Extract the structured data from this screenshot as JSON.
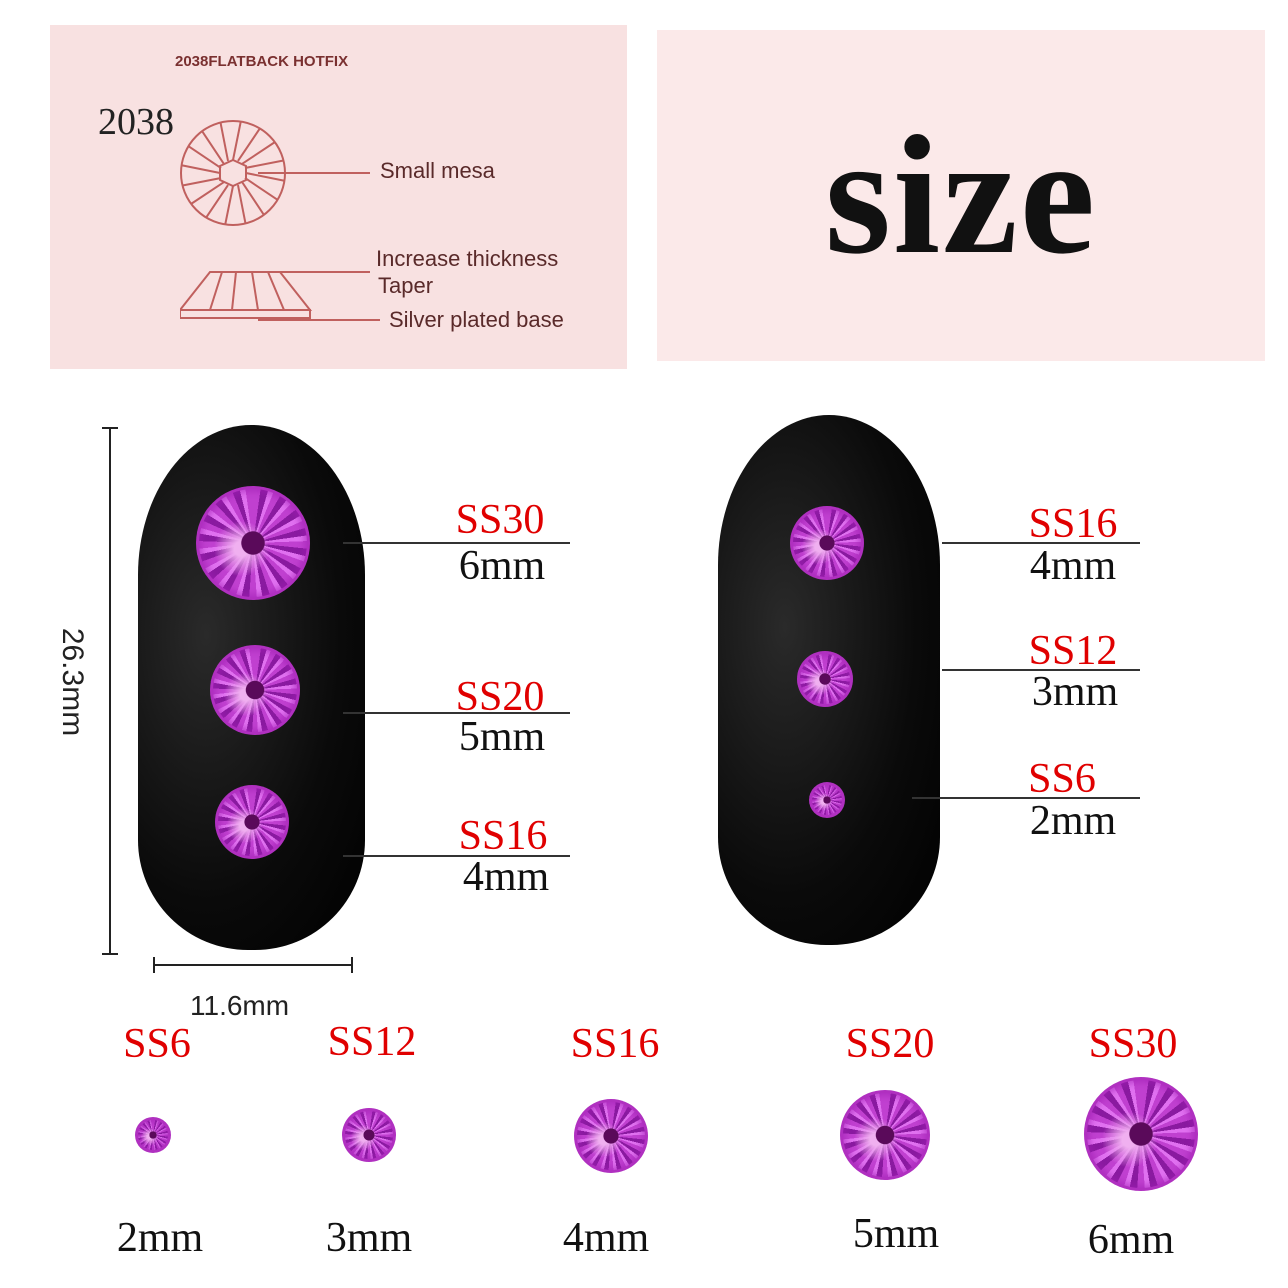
{
  "diagram": {
    "header": "2038FLATBACK HOTFIX",
    "model": "2038",
    "labels": [
      "Small mesa",
      "Increase thickness",
      "Taper",
      "Silver plated base"
    ],
    "color": "#c0605e"
  },
  "title": "size",
  "dimensions": {
    "height": "26.3mm",
    "width": "11.6mm"
  },
  "left_nail": [
    {
      "ss": "SS30",
      "mm": "6mm"
    },
    {
      "ss": "SS20",
      "mm": "5mm"
    },
    {
      "ss": "SS16",
      "mm": "4mm"
    }
  ],
  "right_nail": [
    {
      "ss": "SS16",
      "mm": "4mm"
    },
    {
      "ss": "SS12",
      "mm": "3mm"
    },
    {
      "ss": "SS6",
      "mm": "2mm"
    }
  ],
  "bottom_row": [
    {
      "ss": "SS6",
      "mm": "2mm"
    },
    {
      "ss": "SS12",
      "mm": "3mm"
    },
    {
      "ss": "SS16",
      "mm": "4mm"
    },
    {
      "ss": "SS20",
      "mm": "5mm"
    },
    {
      "ss": "SS30",
      "mm": "6mm"
    }
  ],
  "colors": {
    "ss_label": "#e00000",
    "gem": "#c040d0",
    "panel": "#f8e1e1"
  }
}
